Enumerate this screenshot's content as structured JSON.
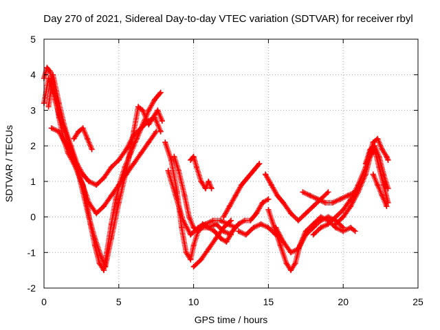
{
  "chart_data": {
    "type": "scatter",
    "title": "Day 270 of 2021, Sidereal Day-to-day VTEC variation (SDTVAR) for receiver rbyl",
    "xlabel": "GPS time / hours",
    "ylabel": "SDTVAR / TECUs",
    "xlim": [
      0,
      25
    ],
    "ylim": [
      -2,
      5
    ],
    "xticks": [
      "0",
      "5",
      "10",
      "15",
      "20",
      "25"
    ],
    "yticks": [
      "-2",
      "-1",
      "0",
      "1",
      "2",
      "3",
      "4",
      "5"
    ],
    "grid": true,
    "marker": "plus",
    "color": "#ff0000",
    "series": [
      {
        "x": [
          0.0,
          0.2,
          0.4,
          0.6,
          0.8,
          1.0,
          1.3,
          1.6,
          2.0,
          2.3,
          2.6,
          2.9,
          3.1,
          3.4,
          3.7,
          4.0,
          4.2,
          4.5,
          4.8,
          5.1,
          5.4,
          5.8,
          6.2,
          6.6,
          7.0,
          7.4,
          7.8
        ],
        "y": [
          3.9,
          4.2,
          4.1,
          3.8,
          3.3,
          2.8,
          2.2,
          1.8,
          1.5,
          1.2,
          0.9,
          0.3,
          -0.2,
          -0.8,
          -1.3,
          -1.5,
          -1.0,
          -0.2,
          0.5,
          1.0,
          1.4,
          1.8,
          2.2,
          2.6,
          3.0,
          3.3,
          3.5
        ]
      },
      {
        "x": [
          0.0,
          0.3,
          0.6,
          1.0,
          1.4,
          1.8,
          2.2,
          2.6,
          3.0,
          3.4,
          3.8,
          4.1,
          4.5,
          5.0,
          5.5,
          6.0,
          6.3,
          6.6,
          7.0,
          7.3,
          7.6,
          7.9
        ],
        "y": [
          3.2,
          3.9,
          3.5,
          2.9,
          2.4,
          1.9,
          1.4,
          0.7,
          0.0,
          -0.6,
          -1.1,
          -1.4,
          -0.6,
          0.4,
          1.3,
          2.4,
          3.1,
          3.0,
          2.6,
          2.8,
          3.0,
          2.7
        ]
      },
      {
        "x": [
          0.3,
          0.6,
          1.0,
          1.4,
          1.8,
          2.2,
          2.6,
          3.0,
          3.5,
          4.0,
          4.5,
          5.0,
          5.5,
          6.0,
          6.5,
          7.0,
          7.4,
          7.8
        ],
        "y": [
          3.1,
          4.0,
          3.2,
          2.5,
          2.0,
          1.5,
          1.2,
          1.0,
          0.9,
          1.1,
          1.4,
          1.6,
          1.9,
          2.3,
          2.5,
          2.7,
          2.8,
          2.4
        ]
      },
      {
        "x": [
          0.5,
          1.0,
          1.5,
          2.0,
          2.5,
          3.0,
          3.5,
          4.0,
          4.5,
          5.0,
          5.5,
          6.0,
          6.5,
          7.0,
          7.5
        ],
        "y": [
          2.5,
          2.4,
          2.0,
          1.6,
          1.0,
          0.4,
          0.1,
          0.3,
          0.6,
          0.9,
          1.2,
          1.5,
          1.8,
          2.1,
          2.4
        ]
      },
      {
        "x": [
          2.0,
          2.3,
          2.6,
          2.9,
          3.2
        ],
        "y": [
          2.2,
          2.4,
          2.5,
          2.2,
          1.9
        ]
      },
      {
        "x": [
          8.1,
          8.5,
          8.9,
          9.2,
          9.5,
          9.8,
          10.0,
          10.3,
          10.6,
          11.0,
          11.5,
          12.0,
          12.5
        ],
        "y": [
          2.1,
          1.6,
          0.7,
          -0.3,
          -1.0,
          -1.2,
          -0.8,
          -0.4,
          -0.3,
          -0.3,
          -0.2,
          -0.4,
          -0.5
        ]
      },
      {
        "x": [
          8.3,
          8.8,
          9.3,
          9.8,
          10.3,
          10.8,
          11.3,
          11.8,
          12.3,
          12.8
        ],
        "y": [
          1.3,
          0.6,
          -0.1,
          -0.5,
          -0.3,
          -0.2,
          -0.1,
          -0.1,
          -0.2,
          -0.3
        ]
      },
      {
        "x": [
          8.7,
          9.0,
          9.4,
          9.7,
          10.0,
          10.3,
          10.6,
          11.0,
          11.4,
          11.8,
          12.2,
          12.6,
          13.0,
          13.4,
          13.8,
          14.2,
          14.6,
          15.0
        ],
        "y": [
          1.7,
          1.3,
          0.6,
          0.0,
          -0.3,
          -0.4,
          -0.2,
          -0.3,
          -0.4,
          -0.6,
          -0.7,
          -0.4,
          -0.2,
          -0.1,
          -0.1,
          0.1,
          0.4,
          0.5
        ]
      },
      {
        "x": [
          9.8,
          10.0,
          10.2,
          10.5,
          10.8,
          11.0,
          11.2
        ],
        "y": [
          1.6,
          1.7,
          1.4,
          1.0,
          0.8,
          1.0,
          0.8
        ]
      },
      {
        "x": [
          10.0,
          10.5,
          11.0,
          11.5,
          12.0,
          12.5
        ],
        "y": [
          -1.4,
          -1.2,
          -0.9,
          -0.6,
          -0.3,
          -0.1
        ]
      },
      {
        "x": [
          12.0,
          12.4,
          12.8,
          13.2,
          13.6,
          14.0,
          14.4
        ],
        "y": [
          0.0,
          0.3,
          0.6,
          0.9,
          1.1,
          1.3,
          1.5
        ]
      },
      {
        "x": [
          13.0,
          13.5,
          14.0,
          14.5,
          15.0,
          15.5
        ],
        "y": [
          -0.4,
          -0.5,
          -0.3,
          -0.2,
          -0.3,
          -0.5
        ]
      },
      {
        "x": [
          14.8,
          15.2,
          15.6,
          16.0,
          16.5,
          17.0,
          17.5,
          18.0,
          18.5,
          19.0
        ],
        "y": [
          1.2,
          0.9,
          0.6,
          0.4,
          0.1,
          -0.1,
          0.1,
          0.3,
          0.5,
          0.7
        ]
      },
      {
        "x": [
          15.0,
          15.4,
          15.8,
          16.2,
          16.5,
          16.8,
          17.1,
          17.5,
          18.0,
          18.5,
          19.0,
          19.5,
          20.0,
          20.5,
          20.8
        ],
        "y": [
          0.2,
          -0.3,
          -0.8,
          -1.3,
          -1.5,
          -1.3,
          -0.8,
          -0.4,
          -0.2,
          0.0,
          -0.1,
          -0.3,
          -0.4,
          -0.3,
          -0.4
        ]
      },
      {
        "x": [
          15.5,
          16.0,
          16.5,
          17.0,
          17.5,
          18.0,
          18.5,
          19.0,
          19.5,
          20.0
        ],
        "y": [
          -0.3,
          -0.7,
          -1.0,
          -0.9,
          -0.5,
          -0.3,
          -0.1,
          0.0,
          -0.1,
          -0.3
        ]
      },
      {
        "x": [
          17.3,
          17.8,
          18.3,
          18.8,
          19.3,
          19.8,
          20.3,
          20.8,
          21.0
        ],
        "y": [
          0.7,
          0.6,
          0.5,
          0.4,
          0.4,
          0.5,
          0.6,
          0.7,
          0.8
        ]
      },
      {
        "x": [
          18.0,
          18.5,
          19.0,
          19.5,
          20.0,
          20.5,
          21.0,
          21.5,
          21.8,
          22.0,
          22.3,
          22.6,
          22.9,
          23.0
        ],
        "y": [
          -0.5,
          -0.3,
          -0.2,
          0.0,
          0.2,
          0.5,
          0.9,
          1.4,
          1.8,
          2.1,
          2.2,
          1.9,
          1.7,
          1.6
        ]
      },
      {
        "x": [
          19.5,
          20.0,
          20.5,
          21.0,
          21.5,
          21.8,
          22.1,
          22.4,
          22.7,
          23.0
        ],
        "y": [
          -0.2,
          0.0,
          0.3,
          0.7,
          1.2,
          1.7,
          1.9,
          1.4,
          0.9,
          0.4
        ]
      },
      {
        "x": [
          21.5,
          21.8,
          22.1,
          22.4,
          22.7,
          23.0
        ],
        "y": [
          1.5,
          1.9,
          2.0,
          1.7,
          1.2,
          0.8
        ]
      },
      {
        "x": [
          22.0,
          22.3,
          22.6,
          22.9
        ],
        "y": [
          1.2,
          0.9,
          0.6,
          0.3
        ]
      }
    ]
  }
}
